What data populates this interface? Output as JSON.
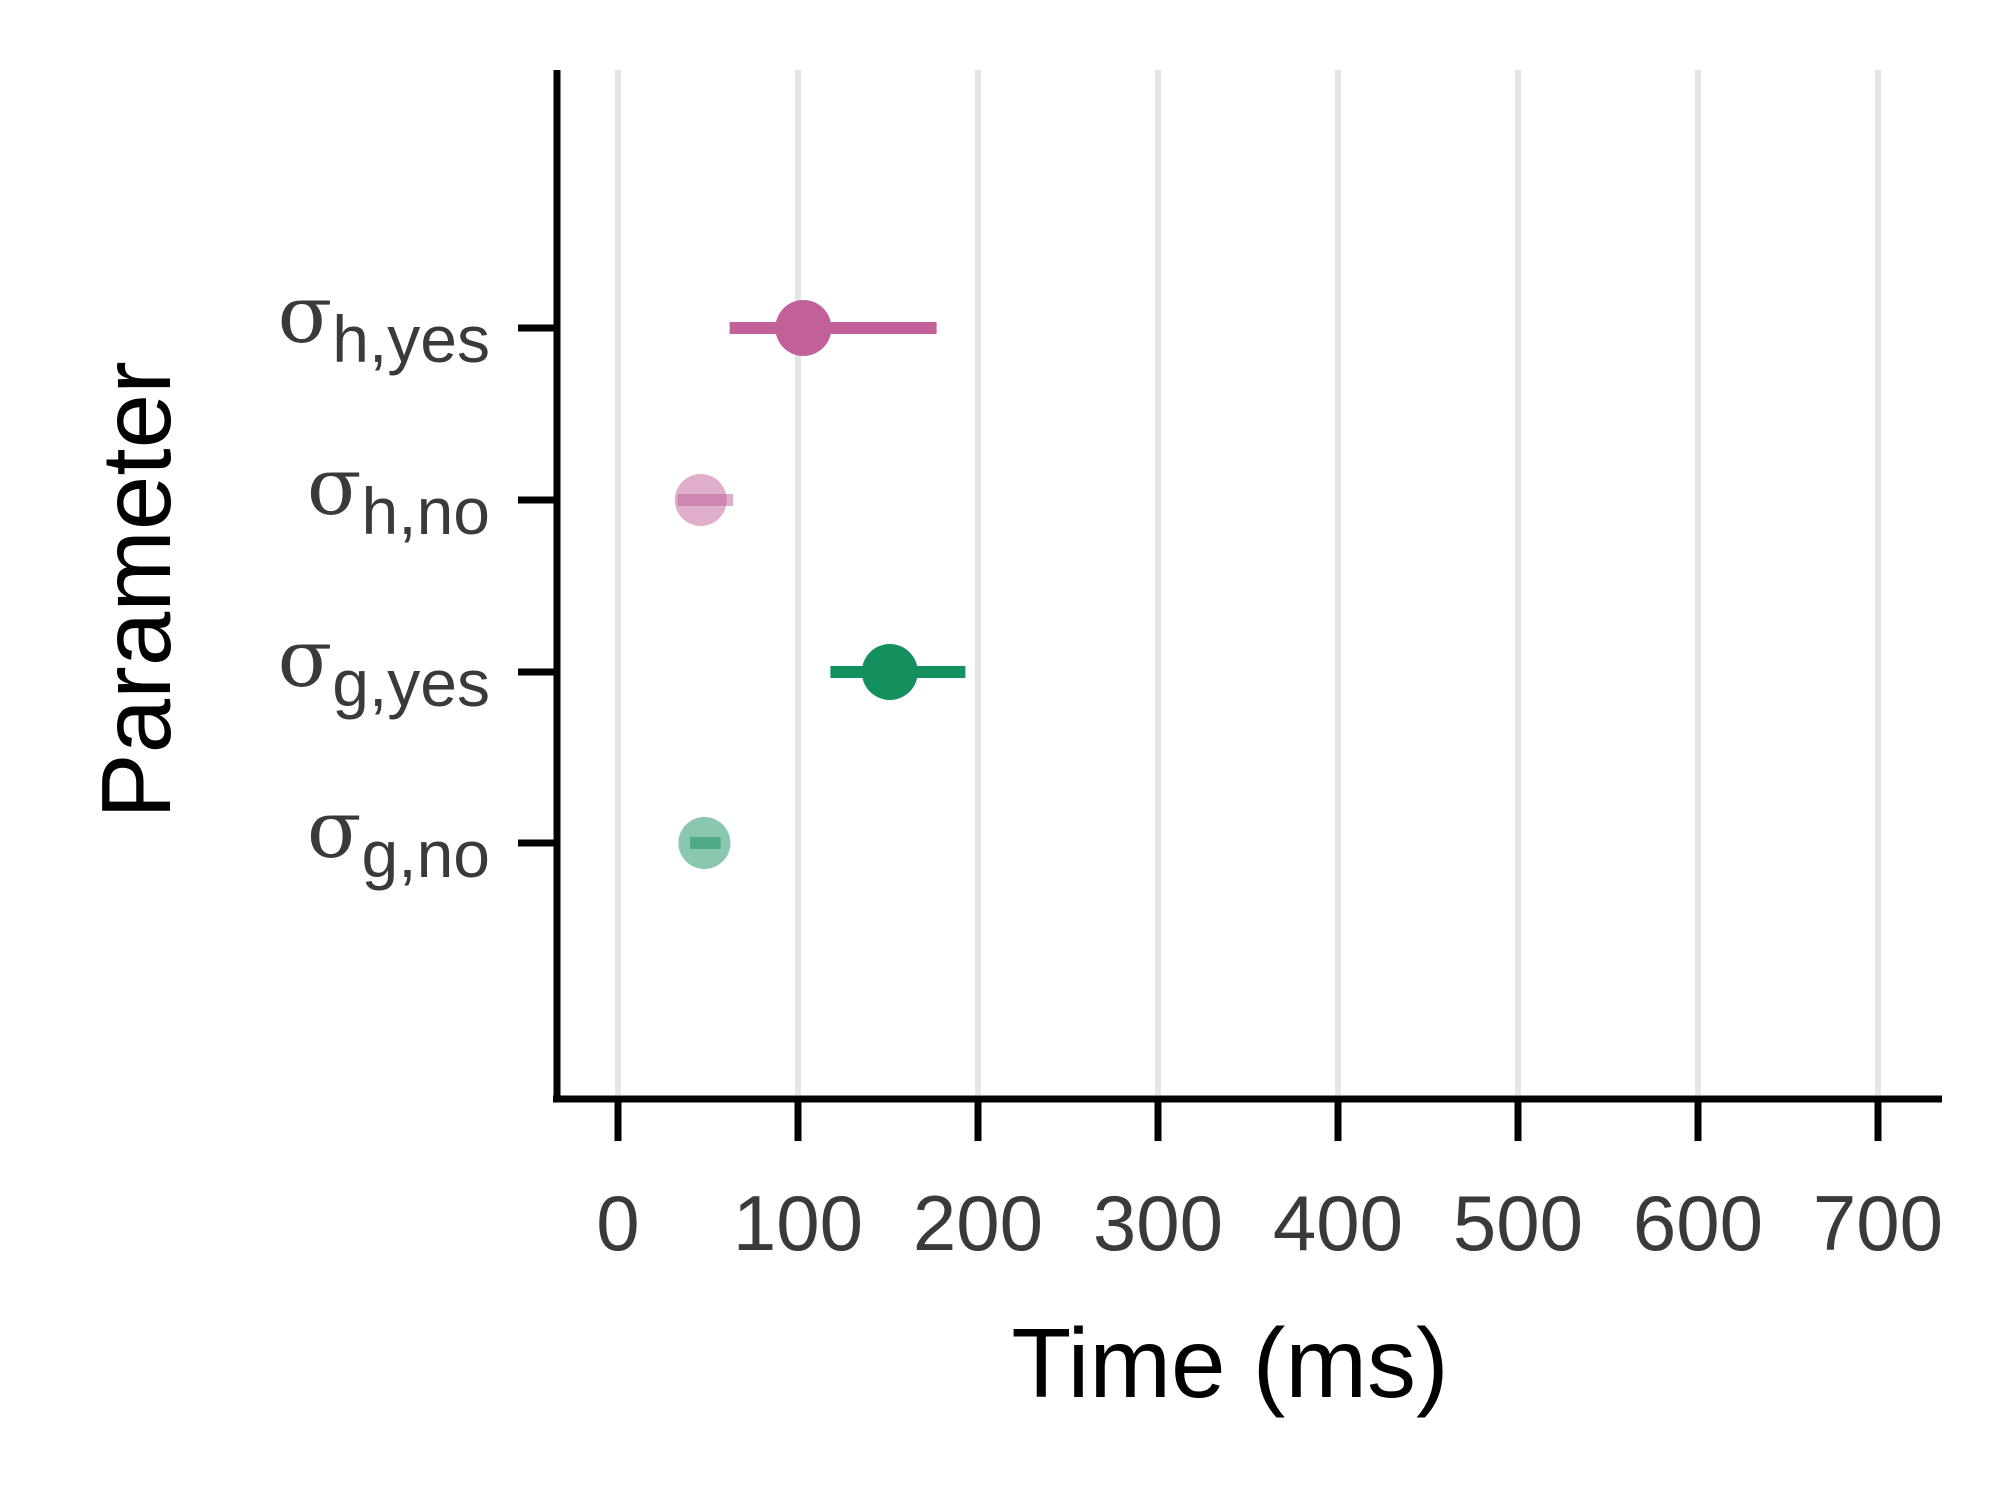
{
  "chart_data": {
    "type": "scatter",
    "xlabel": "Time (ms)",
    "ylabel": "Parameter",
    "xlim": [
      -35,
      735
    ],
    "x_ticks": [
      "0",
      "100",
      "200",
      "300",
      "400",
      "500",
      "600",
      "700"
    ],
    "x_tick_values": [
      0,
      100,
      200,
      300,
      400,
      500,
      600,
      700
    ],
    "grid": "vertical major gridlines",
    "legend": "none",
    "categories": [
      {
        "symbol": "σ",
        "subscript": "h,yes"
      },
      {
        "symbol": "σ",
        "subscript": "h,no"
      },
      {
        "symbol": "σ",
        "subscript": "g,yes"
      },
      {
        "symbol": "σ",
        "subscript": "g,no"
      }
    ],
    "points": [
      {
        "category_index": 0,
        "estimate": 103,
        "lower": 62,
        "upper": 177,
        "color": "#c2609a",
        "faded": false
      },
      {
        "category_index": 1,
        "estimate": 46,
        "lower": 33,
        "upper": 64,
        "color": "#c2609a",
        "faded": true
      },
      {
        "category_index": 2,
        "estimate": 151,
        "lower": 118,
        "upper": 193,
        "color": "#14905e",
        "faded": false
      },
      {
        "category_index": 3,
        "estimate": 48,
        "lower": 40,
        "upper": 57,
        "color": "#14905e",
        "faded": true
      }
    ],
    "colors": {
      "axis": "#000000",
      "grid": "#e5e5e5",
      "tick_label": "#3a3a3a",
      "h_series": "#c2609a",
      "g_series": "#14905e"
    }
  }
}
